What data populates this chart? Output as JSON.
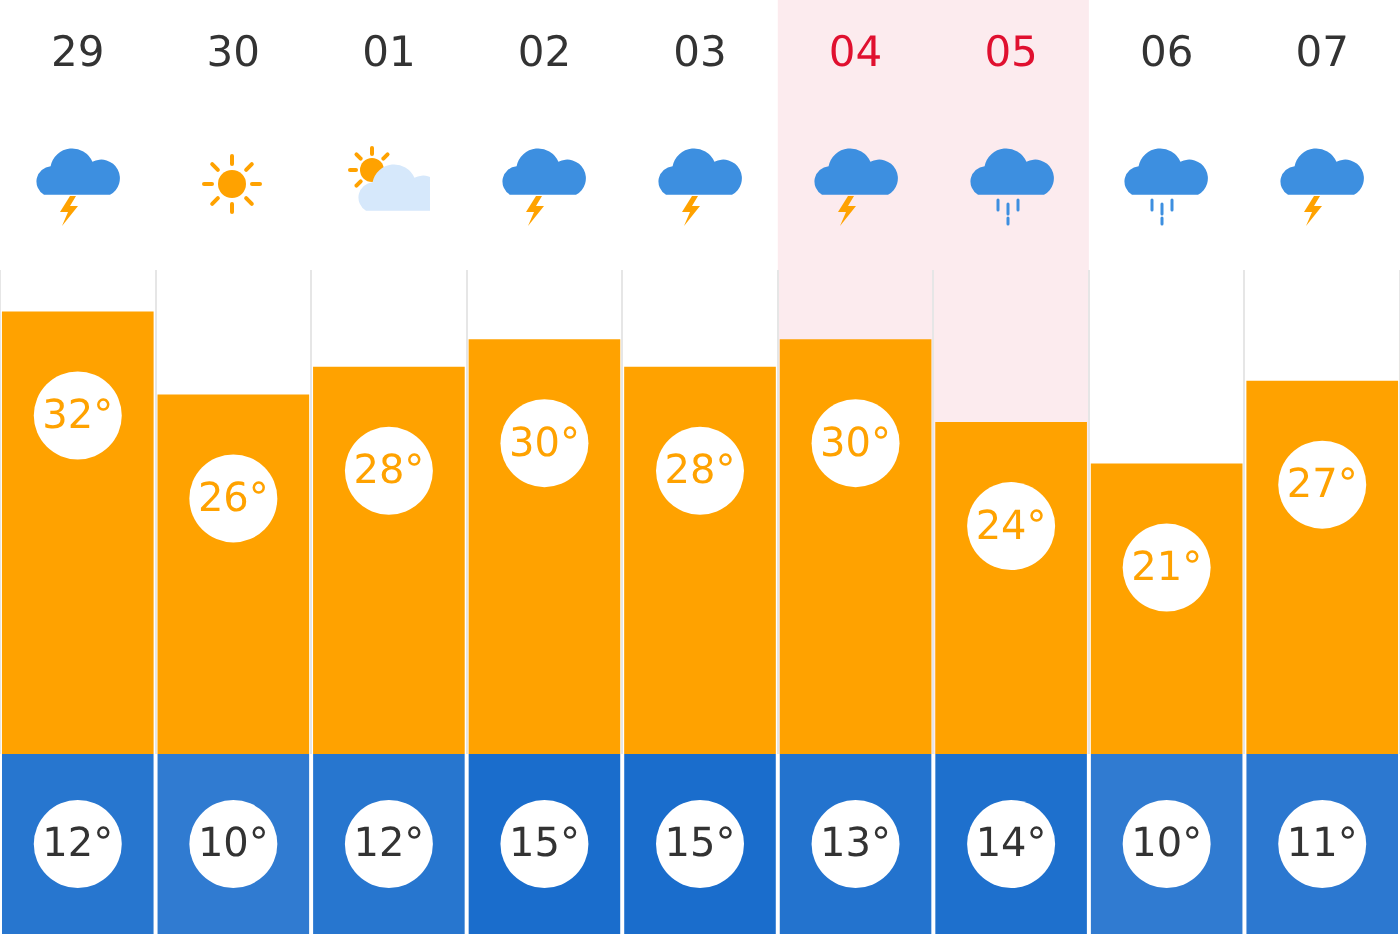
{
  "chart_data": [
    {
      "type": "bar",
      "categories": [
        "29",
        "30",
        "01",
        "02",
        "03",
        "04",
        "05",
        "06",
        "07"
      ],
      "series": [
        {
          "color": "#ffa200",
          "values": [
            32,
            26,
            28,
            30,
            28,
            30,
            24,
            21,
            27
          ],
          "value_labels": [
            "32°",
            "26°",
            "28°",
            "30°",
            "28°",
            "30°",
            "24°",
            "21°",
            "27°"
          ]
        }
      ],
      "grid": "x",
      "legend": false,
      "tick_labels": "x",
      "bands": [
        {
          "axis": "x",
          "from": "04",
          "to": "05",
          "color": "#fcebee"
        }
      ]
    },
    {
      "type": "heatmap",
      "categories": [
        null,
        null,
        null,
        null,
        null,
        null,
        null,
        null,
        null
      ],
      "y_categories": [
        null
      ],
      "cells": [
        [
          12,
          10,
          12,
          15,
          15,
          13,
          14,
          10,
          11
        ]
      ],
      "cell_labels": [
        [
          "12°",
          "10°",
          "12°",
          "15°",
          "15°",
          "13°",
          "14°",
          "10°",
          "11°"
        ]
      ],
      "color": "#1a6dcc",
      "tick_labels": false
    }
  ]
}
